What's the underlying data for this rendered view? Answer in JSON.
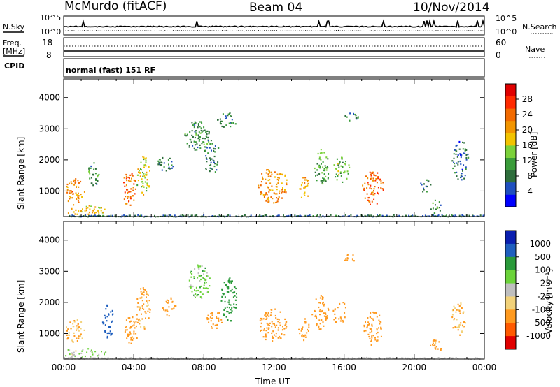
{
  "header": {
    "station": "McMurdo (fitACF)",
    "beam": "Beam 04",
    "date": "10/Nov/2014"
  },
  "noise_panel": {
    "left_label": "N.Sky",
    "right_label": "N.Search",
    "left_ticks": [
      "10^5",
      "10^0"
    ],
    "right_ticks": [
      "10^5",
      "10^0"
    ]
  },
  "freq_panel": {
    "left_label_1": "Freq.",
    "left_label_2": "[MHz]",
    "left_ticks": [
      "18",
      "8"
    ],
    "right_label": "Nave",
    "right_ticks": [
      "60",
      "0"
    ]
  },
  "cpid": {
    "label": "CPID",
    "value": "normal (fast) 151 RF"
  },
  "colors": {
    "power_scale": [
      "#0000ff",
      "#1f4fbf",
      "#2e6e3c",
      "#3a9c3a",
      "#7bd13a",
      "#f2c300",
      "#f29500",
      "#f26a00",
      "#ff2a00",
      "#e00000"
    ],
    "velocity_scale": [
      "#e00000",
      "#ff5a00",
      "#ff9a1f",
      "#f2d27a",
      "#bfbfbf",
      "#6bd33a",
      "#2a9a3a",
      "#1f5fbf",
      "#0a1fb0"
    ]
  },
  "chart_data": [
    {
      "type": "heatmap",
      "panel": "power",
      "xlabel": "",
      "ylabel": "Slant Range [km]",
      "x_ticks": [
        "00:00",
        "04:00",
        "08:00",
        "12:00",
        "16:00",
        "20:00",
        "00:00"
      ],
      "y_ticks": [
        1000,
        2000,
        3000,
        4000
      ],
      "ylim": [
        180,
        4600
      ],
      "colorbar": {
        "label": "Power [dB]",
        "ticks": [
          4,
          8,
          12,
          16,
          20,
          24,
          28
        ],
        "range": [
          0,
          32
        ]
      },
      "echo_regions": [
        {
          "t": 0.6,
          "r": 1000,
          "dt": 0.7,
          "dr": 550,
          "v": 22
        },
        {
          "t": 1.2,
          "r": 400,
          "dt": 1.6,
          "dr": 200,
          "v": 18
        },
        {
          "t": 1.7,
          "r": 1600,
          "dt": 0.4,
          "dr": 500,
          "v": 10
        },
        {
          "t": 3.7,
          "r": 1100,
          "dt": 0.5,
          "dr": 700,
          "v": 24
        },
        {
          "t": 4.5,
          "r": 1500,
          "dt": 0.5,
          "dr": 800,
          "v": 16
        },
        {
          "t": 5.8,
          "r": 1900,
          "dt": 0.6,
          "dr": 300,
          "v": 8
        },
        {
          "t": 7.6,
          "r": 2800,
          "dt": 0.9,
          "dr": 600,
          "v": 10
        },
        {
          "t": 9.3,
          "r": 3300,
          "dt": 0.7,
          "dr": 300,
          "v": 9
        },
        {
          "t": 8.4,
          "r": 2100,
          "dt": 0.6,
          "dr": 700,
          "v": 8
        },
        {
          "t": 11.9,
          "r": 1200,
          "dt": 1.1,
          "dr": 700,
          "v": 21
        },
        {
          "t": 13.7,
          "r": 1100,
          "dt": 0.4,
          "dr": 500,
          "v": 20
        },
        {
          "t": 14.7,
          "r": 1800,
          "dt": 0.6,
          "dr": 700,
          "v": 12
        },
        {
          "t": 15.8,
          "r": 1700,
          "dt": 0.6,
          "dr": 500,
          "v": 13
        },
        {
          "t": 17.6,
          "r": 1100,
          "dt": 0.8,
          "dr": 700,
          "v": 24
        },
        {
          "t": 16.3,
          "r": 3400,
          "dt": 0.6,
          "dr": 150,
          "v": 8
        },
        {
          "t": 20.6,
          "r": 1200,
          "dt": 0.4,
          "dr": 300,
          "v": 8
        },
        {
          "t": 21.2,
          "r": 500,
          "dt": 0.4,
          "dr": 300,
          "v": 10
        },
        {
          "t": 22.6,
          "r": 2000,
          "dt": 0.6,
          "dr": 800,
          "v": 6
        }
      ]
    },
    {
      "type": "heatmap",
      "panel": "velocity",
      "xlabel": "Time UT",
      "ylabel": "Slant Range [km]",
      "x_ticks": [
        "00:00",
        "04:00",
        "08:00",
        "12:00",
        "16:00",
        "20:00",
        "00:00"
      ],
      "y_ticks": [
        1000,
        2000,
        3000,
        4000
      ],
      "ylim": [
        180,
        4600
      ],
      "colorbar": {
        "label": "Velocity [m s⁻¹]",
        "ticks": [
          1000,
          500,
          100,
          25,
          -25,
          -100,
          -500,
          -1000
        ]
      },
      "echo_regions": [
        {
          "t": 0.6,
          "r": 1100,
          "dt": 0.7,
          "dr": 500,
          "v": -100
        },
        {
          "t": 1.1,
          "r": 400,
          "dt": 1.6,
          "dr": 200,
          "v": 25
        },
        {
          "t": 2.5,
          "r": 1400,
          "dt": 0.4,
          "dr": 700,
          "v": 700
        },
        {
          "t": 3.8,
          "r": 1100,
          "dt": 0.5,
          "dr": 600,
          "v": -200
        },
        {
          "t": 4.5,
          "r": 1800,
          "dt": 0.5,
          "dr": 900,
          "v": -120
        },
        {
          "t": 6.0,
          "r": 1900,
          "dt": 0.5,
          "dr": 400,
          "v": -300
        },
        {
          "t": 7.7,
          "r": 2700,
          "dt": 0.8,
          "dr": 700,
          "v": 60
        },
        {
          "t": 8.6,
          "r": 1500,
          "dt": 0.6,
          "dr": 400,
          "v": -400
        },
        {
          "t": 9.4,
          "r": 2100,
          "dt": 0.6,
          "dr": 900,
          "v": 200
        },
        {
          "t": 11.9,
          "r": 1300,
          "dt": 1.0,
          "dr": 700,
          "v": -250
        },
        {
          "t": 13.7,
          "r": 1200,
          "dt": 0.4,
          "dr": 500,
          "v": -300
        },
        {
          "t": 14.6,
          "r": 1700,
          "dt": 0.6,
          "dr": 700,
          "v": -200
        },
        {
          "t": 15.7,
          "r": 1700,
          "dt": 0.5,
          "dr": 500,
          "v": -400
        },
        {
          "t": 17.6,
          "r": 1200,
          "dt": 0.7,
          "dr": 700,
          "v": -180
        },
        {
          "t": 16.3,
          "r": 3450,
          "dt": 0.5,
          "dr": 150,
          "v": -300
        },
        {
          "t": 21.2,
          "r": 600,
          "dt": 0.4,
          "dr": 300,
          "v": -150
        },
        {
          "t": 22.5,
          "r": 1500,
          "dt": 0.5,
          "dr": 700,
          "v": -100
        }
      ]
    }
  ]
}
